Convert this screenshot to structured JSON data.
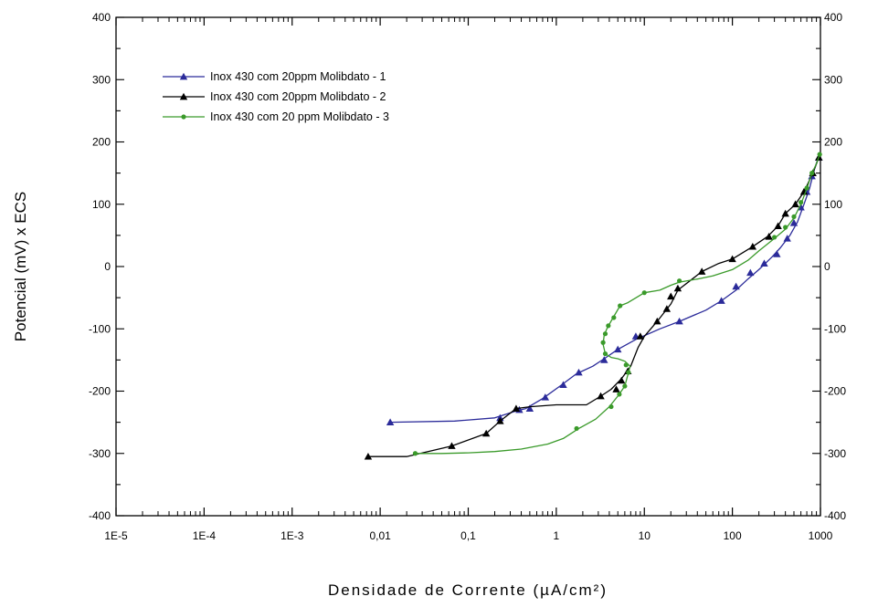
{
  "chart_data": {
    "type": "line",
    "xlabel": "Densidade de Corrente (µA/cm²)",
    "ylabel": "Potencial (mV) x ECS",
    "x_scale": "log",
    "xlim": [
      1e-05,
      1000
    ],
    "ylim": [
      -400,
      400
    ],
    "x_tick_values": [
      1e-05,
      0.0001,
      0.001,
      0.01,
      0.1,
      1,
      10,
      100,
      1000
    ],
    "x_tick_labels": [
      "1E-5",
      "1E-4",
      "1E-3",
      "0,01",
      "0,1",
      "1",
      "10",
      "100",
      "1000"
    ],
    "y_tick_values": [
      -400,
      -300,
      -200,
      -100,
      0,
      100,
      200,
      300,
      400
    ],
    "y_tick_labels": [
      "-400",
      "-300",
      "-200",
      "-100",
      "0",
      "100",
      "200",
      "300",
      "400"
    ],
    "right_axis_labels": true,
    "grid": false,
    "legend_position": "top-left",
    "series": [
      {
        "name": "Inox 430 com 20ppm Molibdato - 1",
        "color": "#2b2b9a",
        "marker": "triangle",
        "points": [
          [
            0.013,
            -250
          ],
          [
            0.07,
            -248
          ],
          [
            0.2,
            -243
          ],
          [
            0.35,
            -232
          ],
          [
            0.45,
            -228
          ],
          [
            0.7,
            -212
          ],
          [
            1.1,
            -192
          ],
          [
            1.7,
            -172
          ],
          [
            2.6,
            -160
          ],
          [
            3.5,
            -148
          ],
          [
            5,
            -133
          ],
          [
            8,
            -117
          ],
          [
            15,
            -100
          ],
          [
            25,
            -88
          ],
          [
            50,
            -70
          ],
          [
            75,
            -55
          ],
          [
            110,
            -38
          ],
          [
            150,
            -20
          ],
          [
            200,
            -5
          ],
          [
            280,
            15
          ],
          [
            350,
            30
          ],
          [
            450,
            50
          ],
          [
            550,
            72
          ],
          [
            650,
            100
          ],
          [
            750,
            125
          ],
          [
            850,
            155
          ],
          [
            960,
            178
          ]
        ],
        "marker_points": [
          [
            0.013,
            -250
          ],
          [
            0.23,
            -243
          ],
          [
            0.38,
            -230
          ],
          [
            0.5,
            -228
          ],
          [
            0.75,
            -210
          ],
          [
            1.2,
            -190
          ],
          [
            1.8,
            -170
          ],
          [
            3.5,
            -150
          ],
          [
            5,
            -133
          ],
          [
            8,
            -112
          ],
          [
            25,
            -88
          ],
          [
            75,
            -55
          ],
          [
            110,
            -32
          ],
          [
            160,
            -10
          ],
          [
            230,
            5
          ],
          [
            320,
            20
          ],
          [
            420,
            45
          ],
          [
            500,
            70
          ],
          [
            600,
            95
          ],
          [
            700,
            120
          ],
          [
            800,
            145
          ],
          [
            960,
            175
          ]
        ]
      },
      {
        "name": "Inox 430 com 20ppm Molibdato - 2",
        "color": "#000000",
        "marker": "triangle",
        "points": [
          [
            0.0073,
            -305
          ],
          [
            0.02,
            -305
          ],
          [
            0.065,
            -288
          ],
          [
            0.16,
            -268
          ],
          [
            0.23,
            -248
          ],
          [
            0.35,
            -228
          ],
          [
            0.5,
            -225
          ],
          [
            1,
            -222
          ],
          [
            2.2,
            -222
          ],
          [
            3.2,
            -208
          ],
          [
            4.2,
            -197
          ],
          [
            5.5,
            -180
          ],
          [
            7,
            -160
          ],
          [
            8.5,
            -130
          ],
          [
            10,
            -112
          ],
          [
            14,
            -88
          ],
          [
            20,
            -60
          ],
          [
            24,
            -38
          ],
          [
            35,
            -20
          ],
          [
            45,
            -8
          ],
          [
            70,
            5
          ],
          [
            100,
            12
          ],
          [
            170,
            32
          ],
          [
            250,
            48
          ],
          [
            330,
            65
          ],
          [
            400,
            85
          ],
          [
            520,
            100
          ],
          [
            650,
            120
          ],
          [
            820,
            150
          ],
          [
            960,
            175
          ]
        ],
        "marker_points": [
          [
            0.0073,
            -305
          ],
          [
            0.065,
            -288
          ],
          [
            0.16,
            -268
          ],
          [
            0.23,
            -248
          ],
          [
            0.35,
            -228
          ],
          [
            3.2,
            -208
          ],
          [
            4.8,
            -197
          ],
          [
            5.5,
            -183
          ],
          [
            6.5,
            -168
          ],
          [
            9,
            -112
          ],
          [
            14,
            -88
          ],
          [
            18,
            -68
          ],
          [
            20,
            -48
          ],
          [
            24,
            -35
          ],
          [
            45,
            -8
          ],
          [
            100,
            12
          ],
          [
            170,
            32
          ],
          [
            260,
            48
          ],
          [
            330,
            65
          ],
          [
            400,
            85
          ],
          [
            520,
            100
          ],
          [
            650,
            120
          ],
          [
            820,
            150
          ],
          [
            960,
            175
          ]
        ]
      },
      {
        "name": "Inox 430 com 20 ppm Molibdato - 3",
        "color": "#3a9a2a",
        "marker": "circle",
        "points": [
          [
            0.025,
            -300
          ],
          [
            0.05,
            -300
          ],
          [
            0.1,
            -299
          ],
          [
            0.2,
            -297
          ],
          [
            0.4,
            -293
          ],
          [
            0.8,
            -285
          ],
          [
            1.2,
            -276
          ],
          [
            1.8,
            -260
          ],
          [
            2.8,
            -245
          ],
          [
            4,
            -225
          ],
          [
            5,
            -208
          ],
          [
            6,
            -192
          ],
          [
            6.6,
            -170
          ],
          [
            6.9,
            -160
          ],
          [
            6,
            -152
          ],
          [
            5,
            -148
          ],
          [
            4.2,
            -146
          ],
          [
            3.6,
            -140
          ],
          [
            3.4,
            -125
          ],
          [
            3.5,
            -110
          ],
          [
            3.8,
            -98
          ],
          [
            4.3,
            -85
          ],
          [
            5.3,
            -63
          ],
          [
            6.5,
            -58
          ],
          [
            10,
            -42
          ],
          [
            15,
            -38
          ],
          [
            20,
            -30
          ],
          [
            25,
            -25
          ],
          [
            40,
            -20
          ],
          [
            60,
            -15
          ],
          [
            100,
            -5
          ],
          [
            150,
            10
          ],
          [
            200,
            25
          ],
          [
            300,
            45
          ],
          [
            400,
            60
          ],
          [
            500,
            78
          ],
          [
            600,
            100
          ],
          [
            700,
            125
          ],
          [
            800,
            150
          ],
          [
            900,
            165
          ],
          [
            980,
            180
          ]
        ],
        "marker_points": [
          [
            0.025,
            -300
          ],
          [
            1.7,
            -260
          ],
          [
            4.2,
            -225
          ],
          [
            5.2,
            -205
          ],
          [
            6,
            -192
          ],
          [
            6.6,
            -170
          ],
          [
            6.2,
            -158
          ],
          [
            3.6,
            -140
          ],
          [
            3.4,
            -122
          ],
          [
            3.6,
            -108
          ],
          [
            3.9,
            -95
          ],
          [
            4.5,
            -82
          ],
          [
            5.3,
            -63
          ],
          [
            10,
            -42
          ],
          [
            25,
            -23
          ],
          [
            300,
            47
          ],
          [
            400,
            63
          ],
          [
            500,
            80
          ],
          [
            600,
            103
          ],
          [
            700,
            126
          ],
          [
            800,
            150
          ],
          [
            980,
            180
          ]
        ]
      }
    ]
  }
}
